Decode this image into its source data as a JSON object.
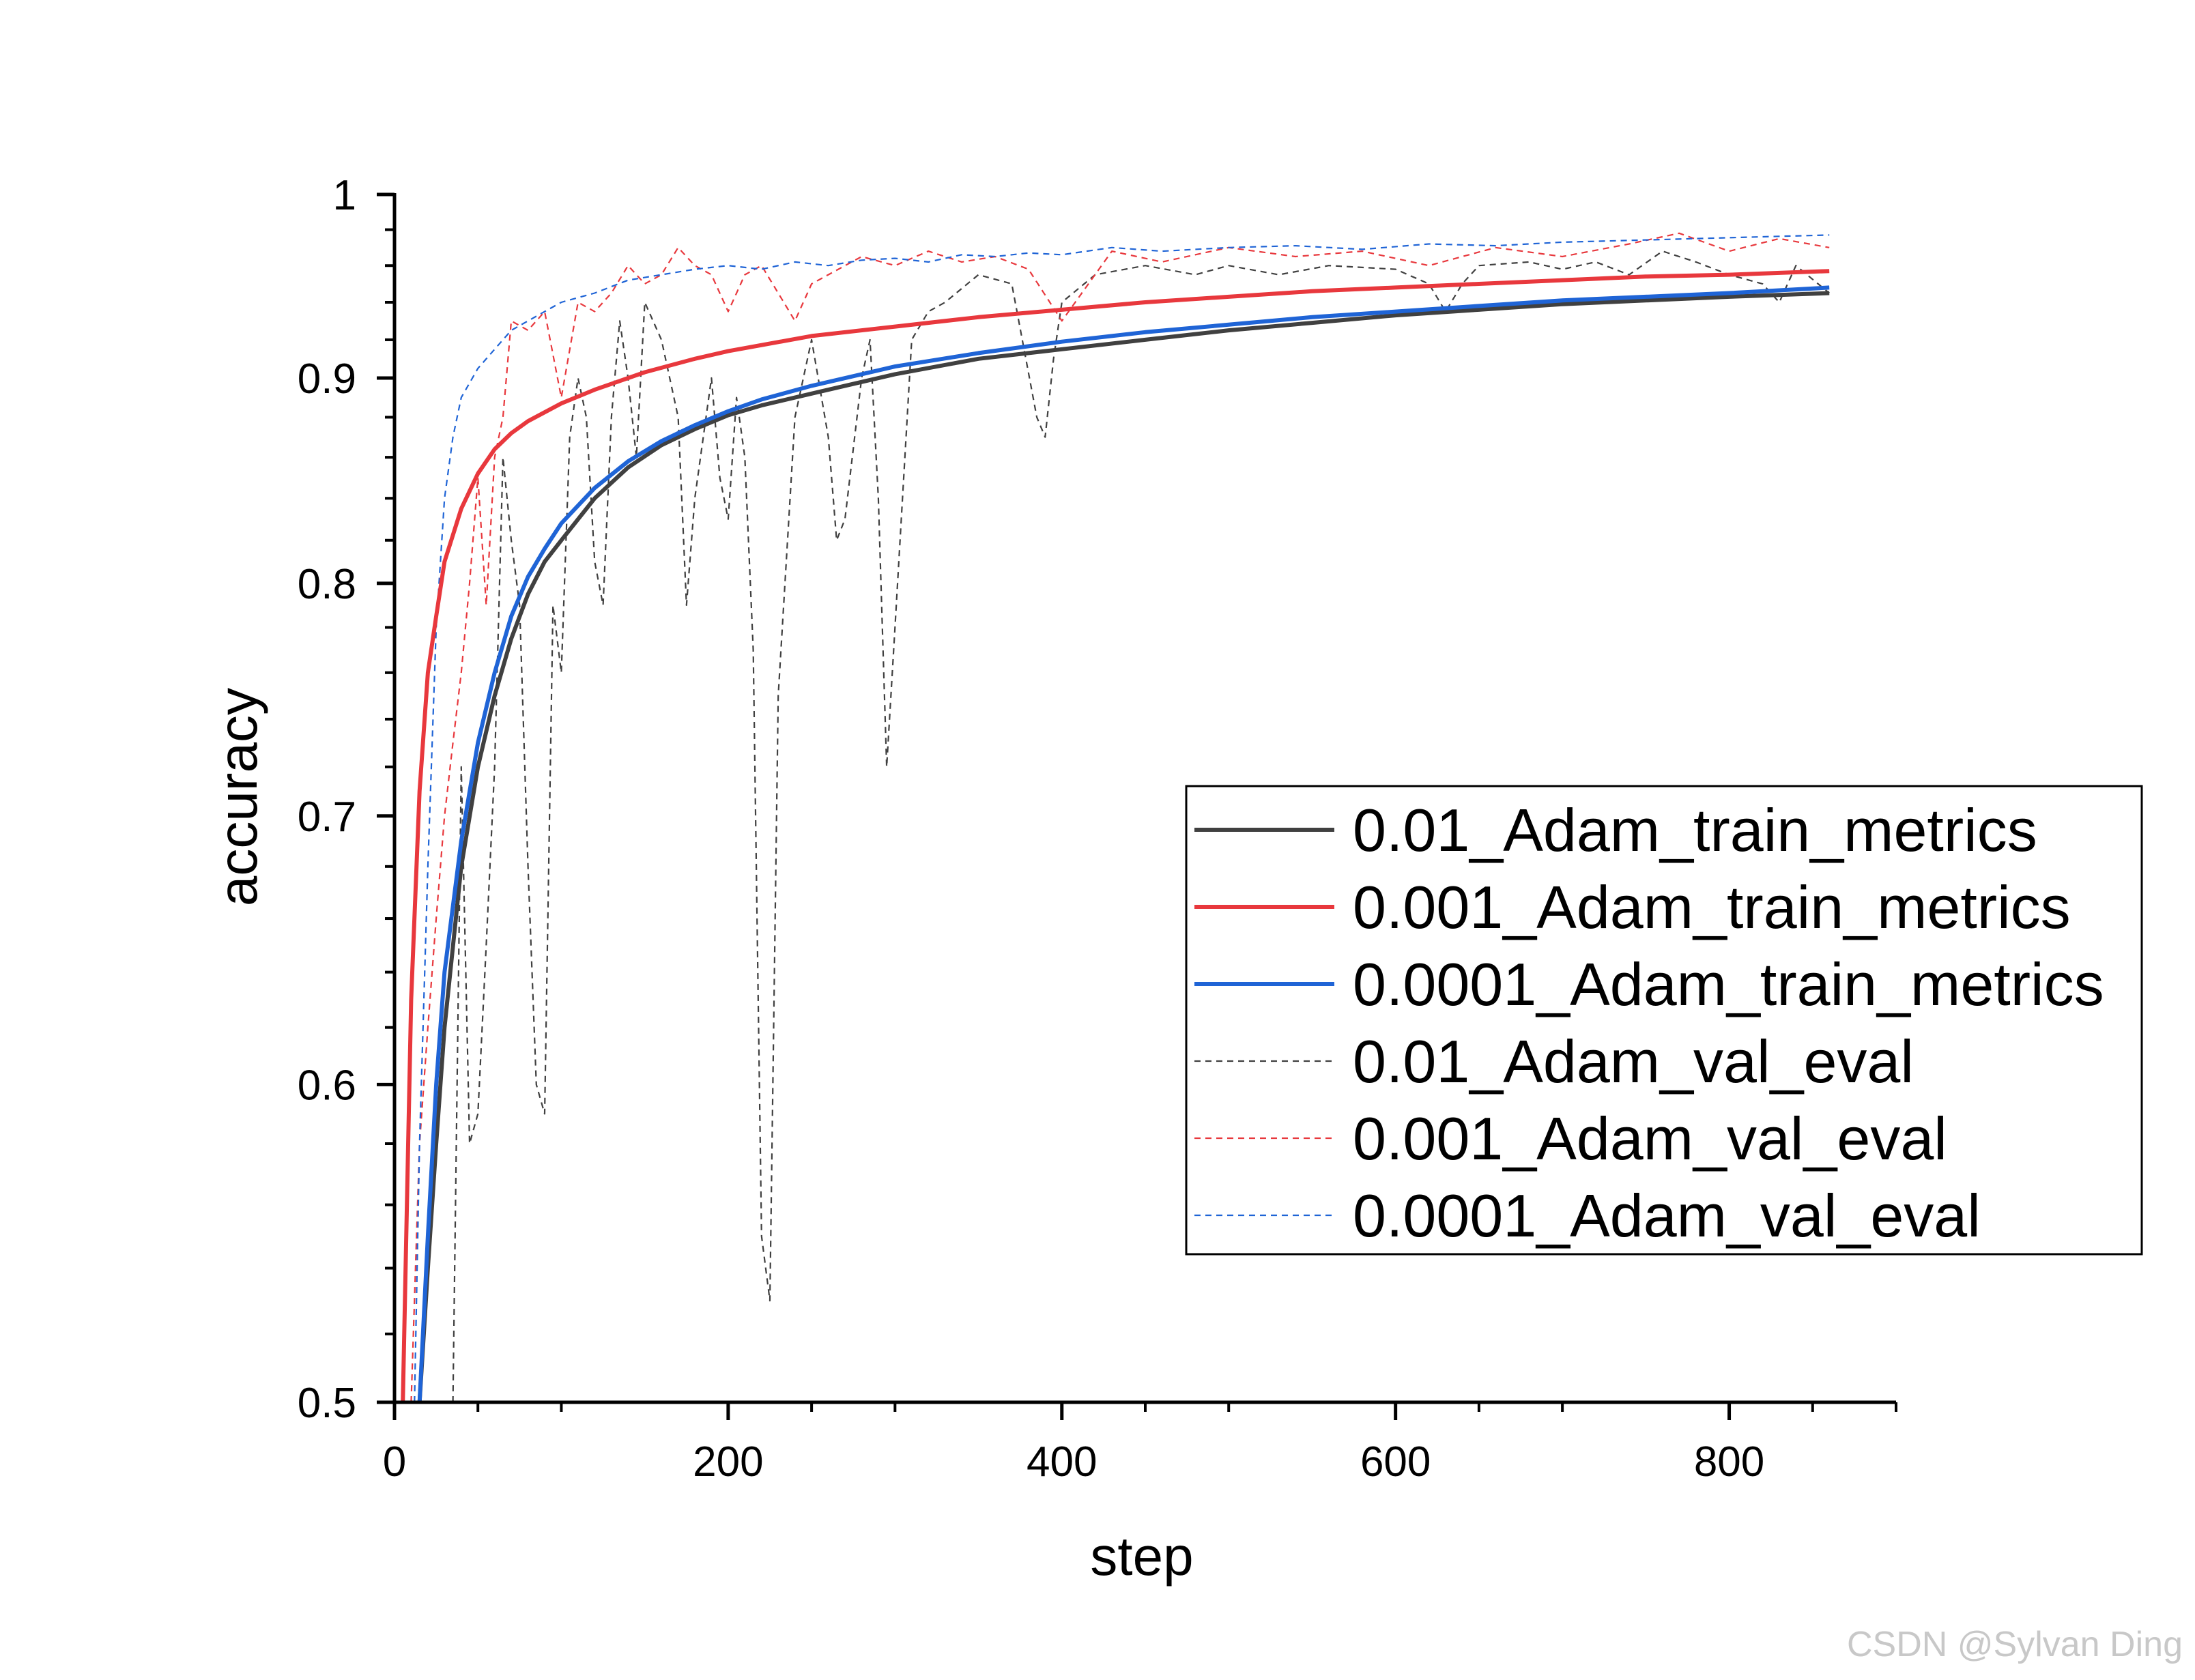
{
  "chart_data": {
    "type": "line",
    "title": "",
    "xlabel": "step",
    "ylabel": "accuracy",
    "xlim": [
      0,
      900
    ],
    "ylim": [
      0.5,
      1.0
    ],
    "y_scale": "log",
    "x_ticks": [
      0,
      200,
      400,
      600,
      800
    ],
    "y_ticks": [
      0.5,
      0.6,
      0.7,
      0.8,
      0.9,
      1
    ],
    "y_tick_labels": [
      "0.5",
      "0.6",
      "0.7",
      "0.8",
      "0.9",
      "1"
    ],
    "grid": false,
    "legend_position": "center-right",
    "series": [
      {
        "name": "0.01_Adam_train_metrics",
        "color": "#404040",
        "style": "solid",
        "x": [
          15,
          20,
          25,
          30,
          40,
          50,
          60,
          70,
          80,
          90,
          100,
          120,
          140,
          160,
          180,
          200,
          220,
          250,
          300,
          350,
          400,
          450,
          500,
          550,
          600,
          650,
          700,
          750,
          800,
          860
        ],
        "y": [
          0.5,
          0.54,
          0.58,
          0.62,
          0.68,
          0.72,
          0.75,
          0.775,
          0.795,
          0.81,
          0.82,
          0.84,
          0.855,
          0.866,
          0.874,
          0.881,
          0.886,
          0.892,
          0.902,
          0.91,
          0.915,
          0.92,
          0.925,
          0.929,
          0.933,
          0.936,
          0.939,
          0.941,
          0.943,
          0.945
        ]
      },
      {
        "name": "0.001_Adam_train_metrics",
        "color": "#e8383d",
        "style": "solid",
        "x": [
          5,
          10,
          15,
          20,
          25,
          30,
          40,
          50,
          60,
          70,
          80,
          100,
          120,
          150,
          180,
          200,
          250,
          300,
          350,
          400,
          450,
          500,
          550,
          600,
          650,
          700,
          750,
          800,
          860
        ],
        "y": [
          0.5,
          0.63,
          0.71,
          0.76,
          0.785,
          0.81,
          0.835,
          0.852,
          0.864,
          0.872,
          0.878,
          0.887,
          0.894,
          0.903,
          0.91,
          0.914,
          0.922,
          0.927,
          0.932,
          0.936,
          0.94,
          0.943,
          0.946,
          0.948,
          0.95,
          0.952,
          0.954,
          0.955,
          0.957
        ]
      },
      {
        "name": "0.0001_Adam_train_metrics",
        "color": "#1f64d6",
        "style": "solid",
        "x": [
          15,
          20,
          25,
          30,
          40,
          50,
          60,
          70,
          80,
          90,
          100,
          120,
          140,
          160,
          180,
          200,
          220,
          250,
          300,
          350,
          400,
          450,
          500,
          550,
          600,
          650,
          700,
          750,
          800,
          860
        ],
        "y": [
          0.5,
          0.55,
          0.6,
          0.64,
          0.69,
          0.73,
          0.76,
          0.785,
          0.803,
          0.816,
          0.828,
          0.845,
          0.858,
          0.868,
          0.876,
          0.883,
          0.889,
          0.896,
          0.906,
          0.913,
          0.919,
          0.924,
          0.928,
          0.932,
          0.935,
          0.938,
          0.941,
          0.943,
          0.945,
          0.948
        ]
      },
      {
        "name": "0.01_Adam_val_eval",
        "color": "#404040",
        "style": "dashed",
        "x": [
          35,
          40,
          45,
          50,
          55,
          60,
          65,
          70,
          75,
          80,
          85,
          90,
          95,
          100,
          105,
          110,
          115,
          120,
          125,
          130,
          135,
          140,
          145,
          150,
          160,
          170,
          175,
          180,
          190,
          195,
          200,
          205,
          210,
          215,
          220,
          225,
          230,
          240,
          250,
          260,
          265,
          270,
          280,
          285,
          290,
          295,
          300,
          310,
          320,
          330,
          350,
          370,
          385,
          390,
          395,
          400,
          420,
          450,
          480,
          500,
          530,
          560,
          600,
          620,
          630,
          640,
          650,
          680,
          700,
          720,
          740,
          760,
          780,
          800,
          820,
          830,
          840,
          860
        ],
        "y": [
          0.5,
          0.72,
          0.58,
          0.59,
          0.65,
          0.72,
          0.86,
          0.82,
          0.79,
          0.68,
          0.6,
          0.59,
          0.79,
          0.76,
          0.87,
          0.9,
          0.88,
          0.81,
          0.79,
          0.88,
          0.93,
          0.9,
          0.86,
          0.94,
          0.92,
          0.88,
          0.79,
          0.84,
          0.9,
          0.85,
          0.83,
          0.89,
          0.86,
          0.77,
          0.55,
          0.53,
          0.75,
          0.88,
          0.92,
          0.87,
          0.82,
          0.83,
          0.9,
          0.92,
          0.84,
          0.72,
          0.78,
          0.92,
          0.935,
          0.94,
          0.955,
          0.95,
          0.88,
          0.87,
          0.91,
          0.94,
          0.955,
          0.96,
          0.955,
          0.96,
          0.955,
          0.96,
          0.958,
          0.95,
          0.935,
          0.95,
          0.96,
          0.962,
          0.958,
          0.962,
          0.955,
          0.968,
          0.962,
          0.955,
          0.95,
          0.94,
          0.96,
          0.945
        ]
      },
      {
        "name": "0.001_Adam_val_eval",
        "color": "#e8383d",
        "style": "dashed",
        "x": [
          10,
          15,
          20,
          25,
          30,
          35,
          40,
          45,
          50,
          55,
          60,
          65,
          70,
          80,
          90,
          100,
          110,
          120,
          130,
          140,
          150,
          160,
          170,
          180,
          190,
          200,
          210,
          220,
          230,
          240,
          250,
          260,
          280,
          300,
          320,
          340,
          360,
          380,
          400,
          430,
          460,
          500,
          540,
          580,
          620,
          660,
          700,
          740,
          770,
          800,
          830,
          860
        ],
        "y": [
          0.5,
          0.58,
          0.62,
          0.66,
          0.7,
          0.73,
          0.76,
          0.8,
          0.85,
          0.79,
          0.86,
          0.88,
          0.93,
          0.925,
          0.935,
          0.89,
          0.94,
          0.935,
          0.945,
          0.96,
          0.95,
          0.955,
          0.97,
          0.96,
          0.955,
          0.935,
          0.955,
          0.96,
          0.945,
          0.93,
          0.95,
          0.955,
          0.965,
          0.96,
          0.968,
          0.962,
          0.965,
          0.958,
          0.93,
          0.968,
          0.962,
          0.97,
          0.965,
          0.968,
          0.96,
          0.97,
          0.965,
          0.972,
          0.978,
          0.968,
          0.975,
          0.97
        ]
      },
      {
        "name": "0.0001_Adam_val_eval",
        "color": "#1f64d6",
        "style": "dashed",
        "x": [
          12,
          15,
          20,
          25,
          30,
          35,
          40,
          50,
          60,
          70,
          80,
          90,
          100,
          120,
          140,
          160,
          180,
          200,
          220,
          240,
          260,
          280,
          300,
          320,
          340,
          360,
          380,
          400,
          430,
          460,
          500,
          540,
          580,
          620,
          660,
          700,
          740,
          780,
          820,
          860
        ],
        "y": [
          0.5,
          0.58,
          0.68,
          0.78,
          0.84,
          0.87,
          0.89,
          0.905,
          0.915,
          0.925,
          0.93,
          0.935,
          0.94,
          0.945,
          0.952,
          0.955,
          0.958,
          0.96,
          0.958,
          0.962,
          0.96,
          0.963,
          0.964,
          0.962,
          0.966,
          0.965,
          0.967,
          0.966,
          0.97,
          0.968,
          0.97,
          0.971,
          0.969,
          0.972,
          0.971,
          0.973,
          0.974,
          0.975,
          0.976,
          0.977
        ]
      }
    ],
    "watermark": "CSDN @Sylvan Ding"
  }
}
